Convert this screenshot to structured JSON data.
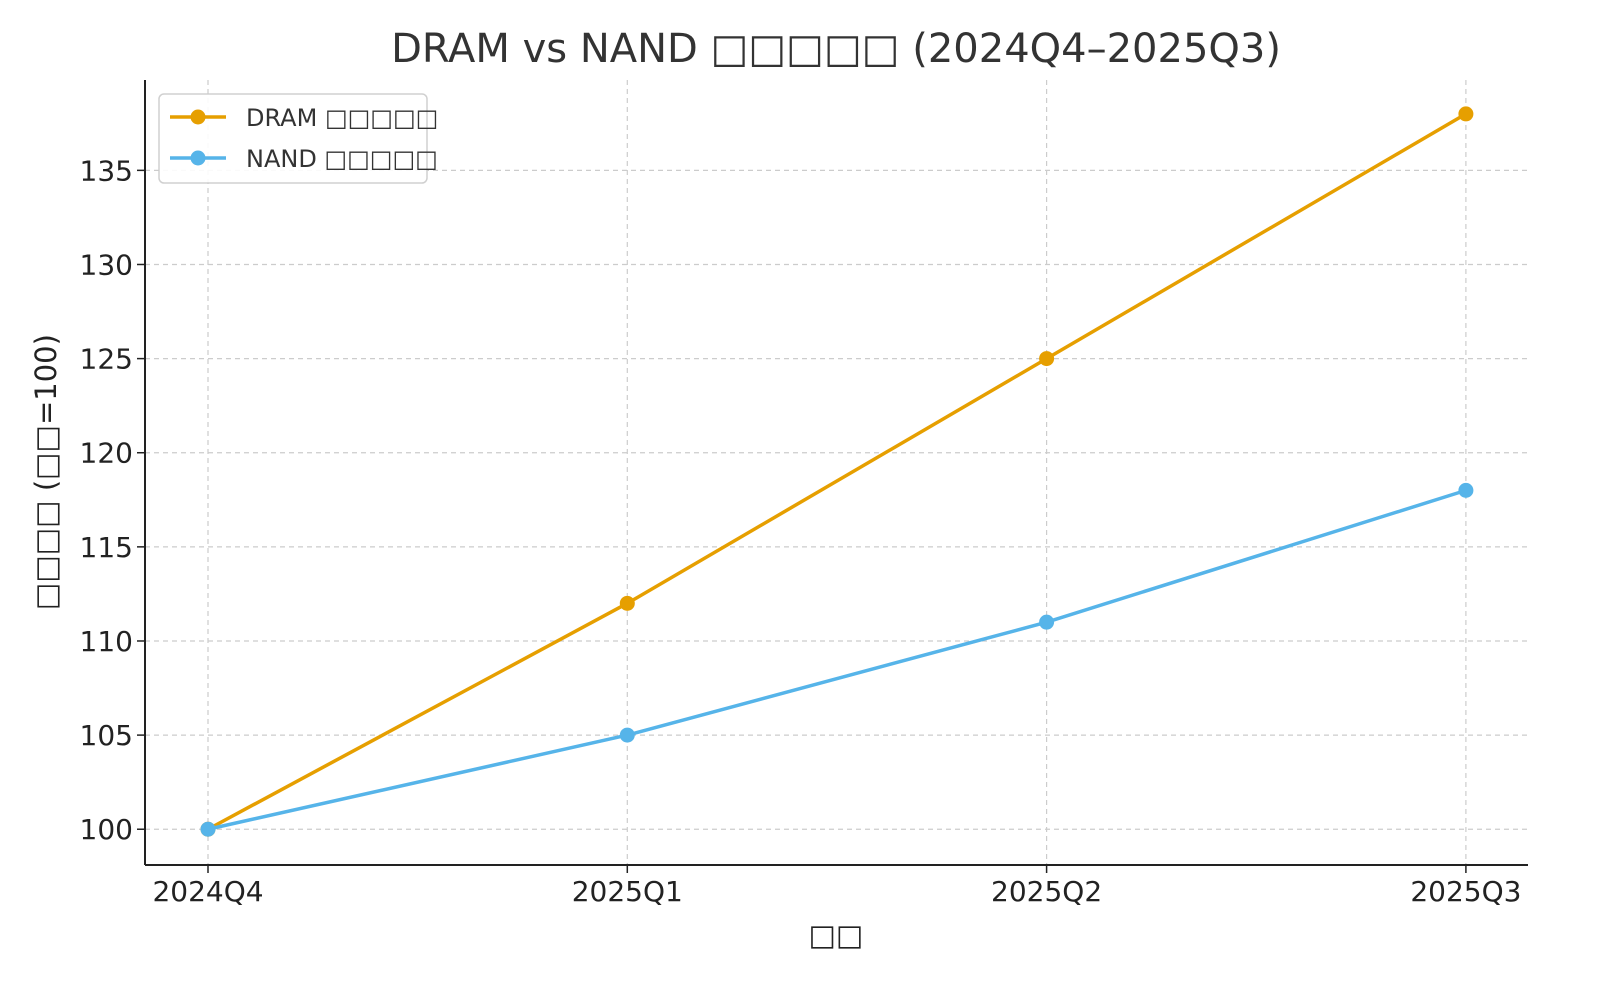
{
  "chart_data": {
    "type": "line",
    "title": "DRAM vs NAND □□□□□ (2024Q4–2025Q3)",
    "xlabel": "□□",
    "ylabel": "□□□□ (□□=100)",
    "categories": [
      "2024Q4",
      "2025Q1",
      "2025Q2",
      "2025Q3"
    ],
    "series": [
      {
        "name": "DRAM □□□□□",
        "values": [
          100,
          112,
          125,
          138
        ],
        "color": "#E69F00"
      },
      {
        "name": "NAND □□□□□",
        "values": [
          100,
          105,
          111,
          118
        ],
        "color": "#56B4E9"
      }
    ],
    "yticks": [
      100,
      105,
      110,
      115,
      120,
      125,
      130,
      135
    ],
    "ylim": [
      98.1,
      139.8
    ],
    "grid": true,
    "legend": "top-left"
  }
}
